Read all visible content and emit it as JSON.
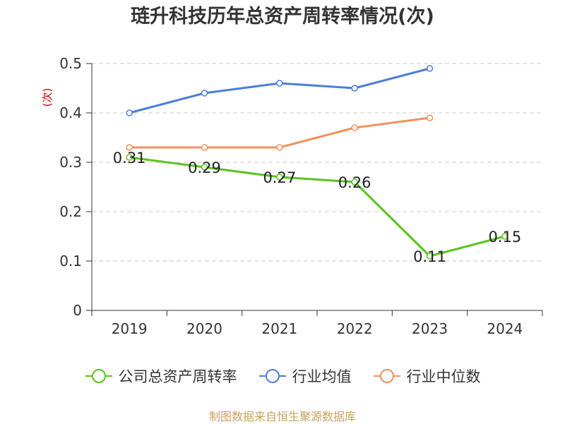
{
  "title": "琏升科技历年总资产周转率情况(次)",
  "source": "制图数据来自恒生聚源数据库",
  "colors": {
    "company": "#5ac31e",
    "industry_avg": "#4a7fd8",
    "industry_median": "#f2915d",
    "axis": "#333333",
    "grid": "#cccccc",
    "ylabel": "#cc0000"
  },
  "chart_data": {
    "type": "line",
    "title": "琏升科技历年总资产周转率情况(次)",
    "xlabel": "",
    "ylabel": "(次)",
    "categories": [
      "2019",
      "2020",
      "2021",
      "2022",
      "2023",
      "2024"
    ],
    "ylim": [
      0,
      0.5
    ],
    "yticks": [
      "0",
      "0.1",
      "0.2",
      "0.3",
      "0.4",
      "0.5"
    ],
    "grid": true,
    "legend_position": "bottom",
    "series": [
      {
        "name": "公司总资产周转率",
        "key": "company",
        "values": [
          0.31,
          0.29,
          0.27,
          0.26,
          0.11,
          0.15
        ],
        "labels": [
          "0.31",
          "0.29",
          "0.27",
          "0.26",
          "0.11",
          "0.15"
        ]
      },
      {
        "name": "行业均值",
        "key": "industry_avg",
        "values": [
          0.4,
          0.44,
          0.46,
          0.45,
          0.49,
          null
        ]
      },
      {
        "name": "行业中位数",
        "key": "industry_median",
        "values": [
          0.33,
          0.33,
          0.33,
          0.37,
          0.39,
          null
        ]
      }
    ]
  }
}
